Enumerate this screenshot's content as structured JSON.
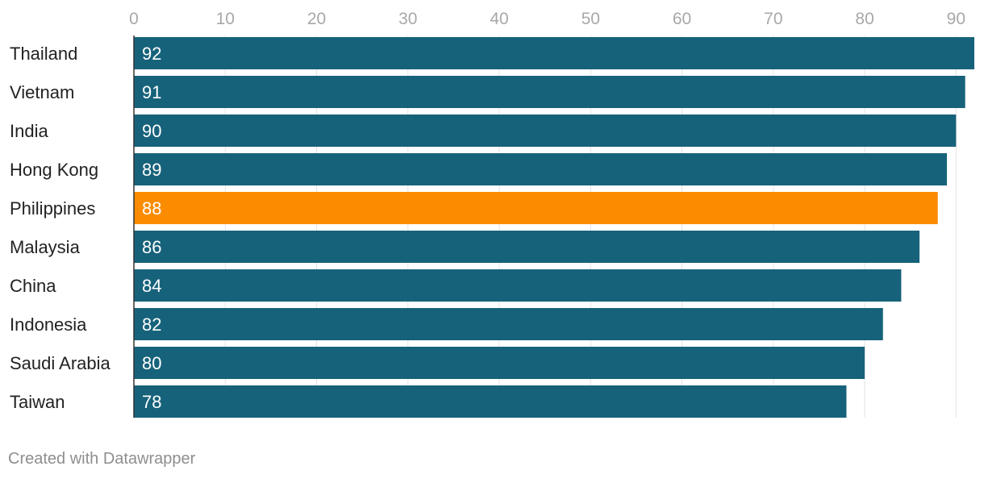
{
  "chart_data": {
    "type": "bar",
    "orientation": "horizontal",
    "categories": [
      "Thailand",
      "Vietnam",
      "India",
      "Hong Kong",
      "Philippines",
      "Malaysia",
      "China",
      "Indonesia",
      "Saudi Arabia",
      "Taiwan"
    ],
    "values": [
      92,
      91,
      90,
      89,
      88,
      86,
      84,
      82,
      80,
      78
    ],
    "highlight": "Philippines",
    "xlim": [
      0,
      92
    ],
    "x_ticks": [
      0,
      10,
      20,
      30,
      40,
      50,
      60,
      70,
      80,
      90
    ],
    "grid": true,
    "colors": {
      "bar": "#17627b",
      "highlight": "#fb8c00"
    }
  },
  "footer": {
    "credit": "Created with Datawrapper"
  }
}
